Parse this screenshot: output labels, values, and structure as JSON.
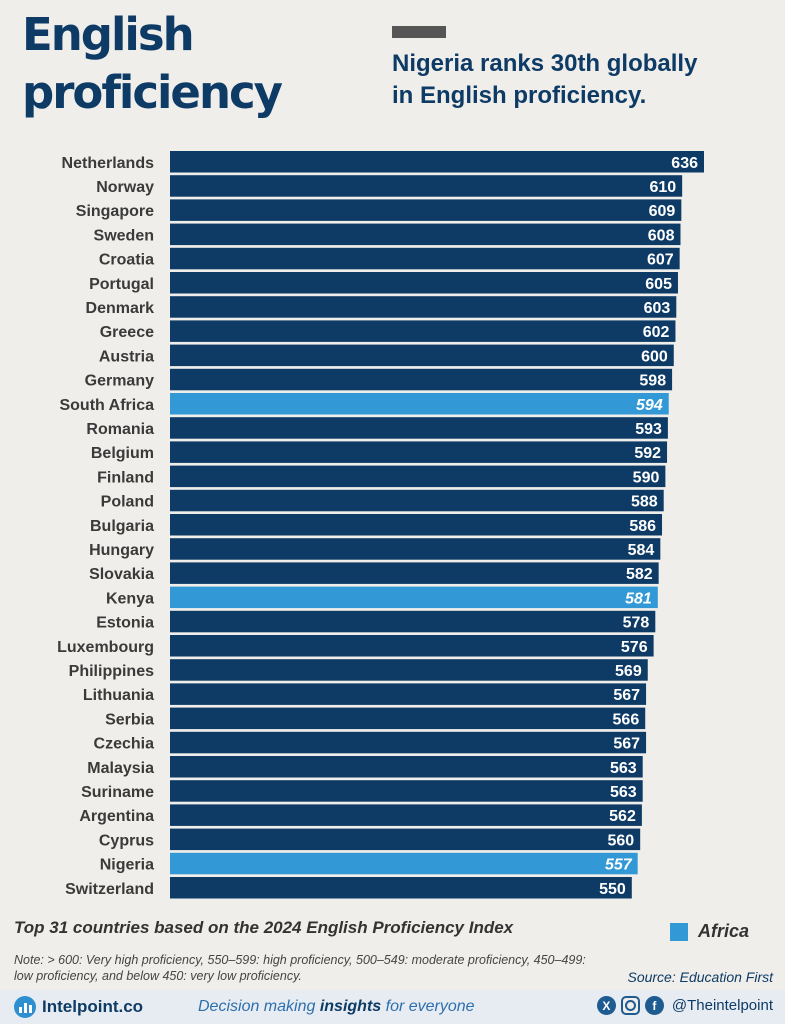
{
  "header": {
    "title_line1": "English",
    "title_line2": "proficiency",
    "subtitle_line1": "Nigeria ranks 30th globally",
    "subtitle_line2": "in English proficiency."
  },
  "colors": {
    "default_bar": "#0d3b66",
    "africa_bar": "#3399d6",
    "title": "#0d3b66"
  },
  "chart_data": {
    "type": "bar",
    "orientation": "horizontal",
    "categories": [
      "Netherlands",
      "Norway",
      "Singapore",
      "Sweden",
      "Croatia",
      "Portugal",
      "Denmark",
      "Greece",
      "Austria",
      "Germany",
      "South Africa",
      "Romania",
      "Belgium",
      "Finland",
      "Poland",
      "Bulgaria",
      "Hungary",
      "Slovakia",
      "Kenya",
      "Estonia",
      "Luxembourg",
      "Philippines",
      "Lithuania",
      "Serbia",
      "Czechia",
      "Malaysia",
      "Suriname",
      "Argentina",
      "Cyprus",
      "Nigeria",
      "Switzerland"
    ],
    "values": [
      636,
      610,
      609,
      608,
      607,
      605,
      603,
      602,
      600,
      598,
      594,
      593,
      592,
      590,
      588,
      586,
      584,
      582,
      581,
      578,
      576,
      569,
      567,
      566,
      567,
      563,
      563,
      562,
      560,
      557,
      550
    ],
    "highlighted": [
      "South Africa",
      "Kenya",
      "Nigeria"
    ],
    "title": "Top 31 countries based on the 2024 English Proficiency Index",
    "legend": [
      {
        "name": "Africa",
        "color": "#3399d6"
      }
    ],
    "legend_position": "bottom-right",
    "grid": false
  },
  "footer": {
    "note": "Note: > 600: Very high proficiency, 550–599: high proficiency, 500–549: moderate proficiency, 450–499: low proficiency, and below 450: very low proficiency.",
    "source": "Source: Education First",
    "brand": "Intelpoint.co",
    "tagline_pre": "Decision making ",
    "tagline_bold": "insights",
    "tagline_post": " for everyone",
    "handle": "@Theintelpoint"
  }
}
